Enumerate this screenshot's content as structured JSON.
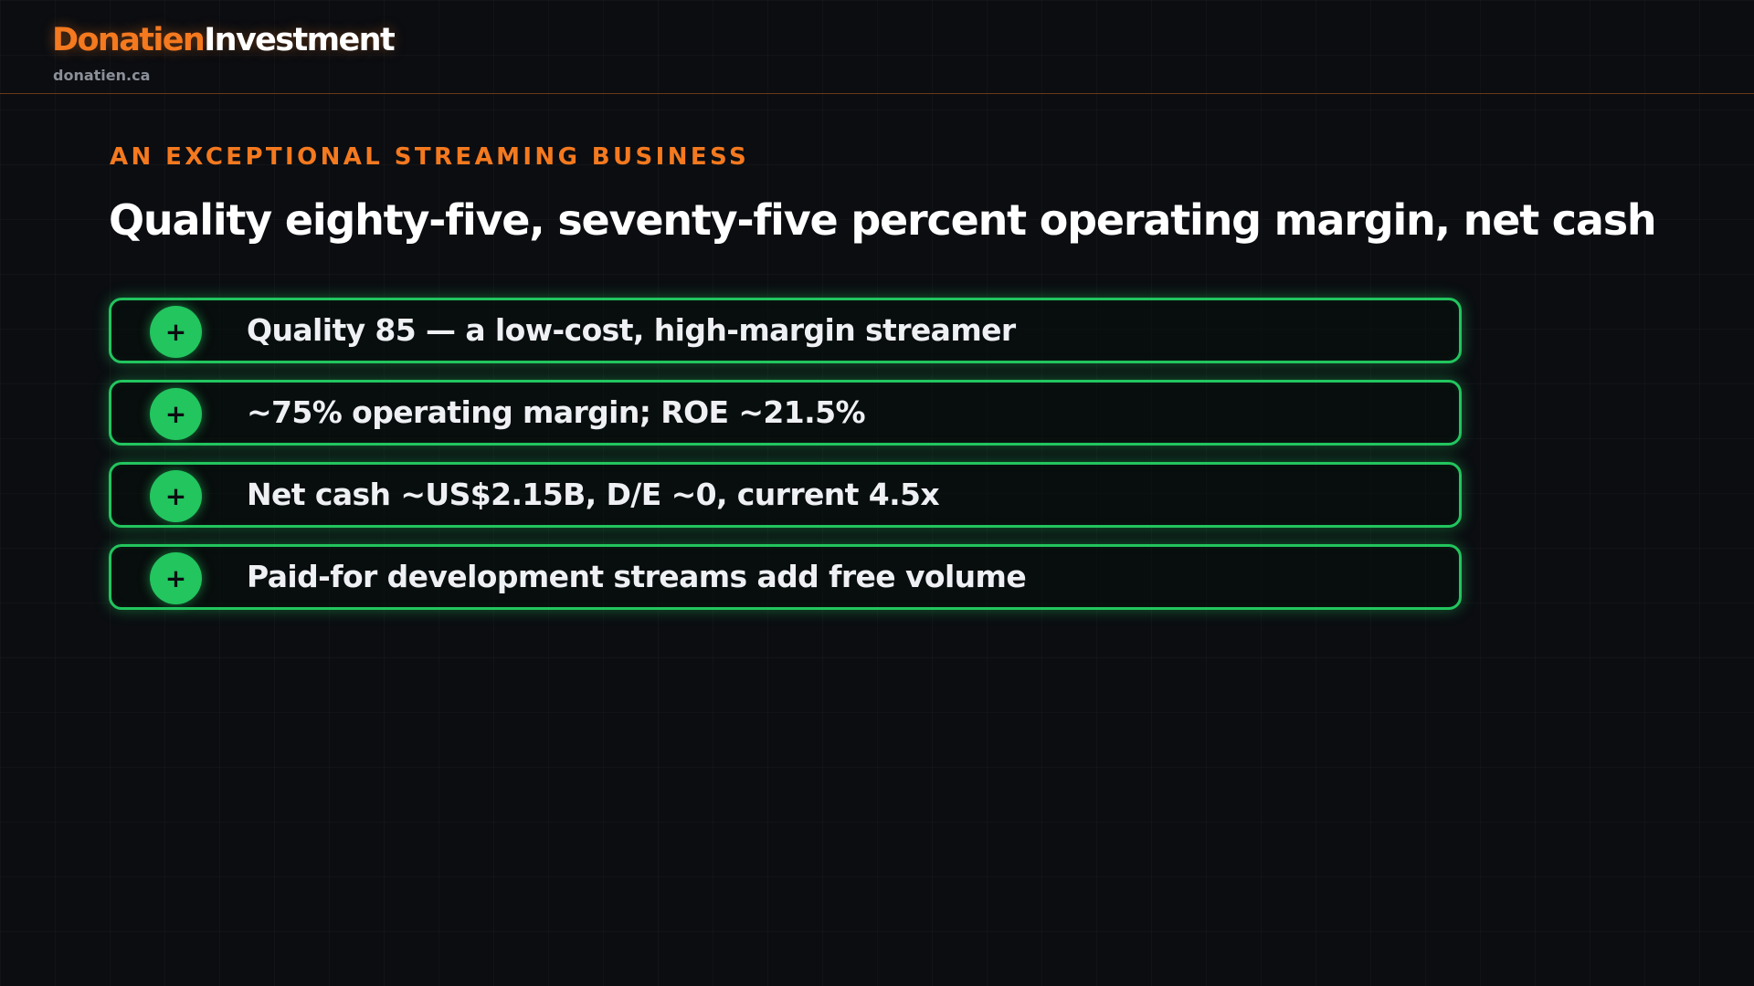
{
  "header": {
    "brand_primary": "Donatien",
    "brand_secondary": "Investment",
    "domain": "donatien.ca"
  },
  "slide": {
    "eyebrow": "AN EXCEPTIONAL STREAMING BUSINESS",
    "title": "Quality eighty-five, seventy-five percent operating margin, net cash",
    "points": [
      {
        "icon": "plus-icon",
        "symbol": "+",
        "text": "Quality 85 — a low-cost, high-margin streamer"
      },
      {
        "icon": "plus-icon",
        "symbol": "+",
        "text": "~75% operating margin; ROE ~21.5%"
      },
      {
        "icon": "plus-icon",
        "symbol": "+",
        "text": "Net cash ~US$2.15B, D/E ~0, current 4.5x"
      },
      {
        "icon": "plus-icon",
        "symbol": "+",
        "text": "Paid-for development streams add free volume"
      }
    ]
  },
  "colors": {
    "accent": "#f4791f",
    "positive": "#22c55e",
    "background": "#0b0d11"
  }
}
